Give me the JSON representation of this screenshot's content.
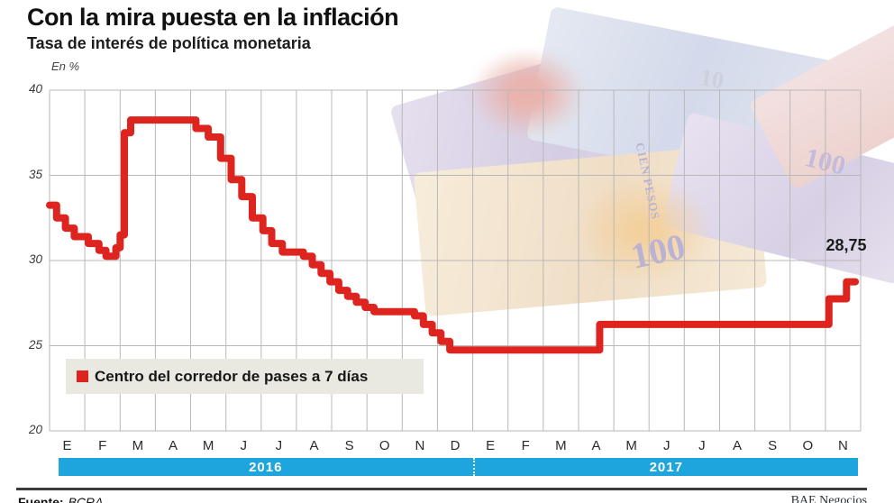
{
  "header": {
    "title": "Con la mira puesta en la inflación",
    "subtitle": "Tasa de interés de política monetaria"
  },
  "chart": {
    "unit_label": "En %",
    "end_label": "28,75",
    "legend_label": "Centro del corredor de pases a 7 días",
    "y_ticks": [
      40,
      35,
      30,
      25,
      20
    ],
    "months": [
      "E",
      "F",
      "M",
      "A",
      "M",
      "J",
      "J",
      "A",
      "S",
      "O",
      "N",
      "D",
      "E",
      "F",
      "M",
      "A",
      "M",
      "J",
      "J",
      "A",
      "S",
      "O",
      "N"
    ],
    "years": [
      {
        "label": "2016",
        "months": 12
      },
      {
        "label": "2017",
        "months": 11
      }
    ]
  },
  "chart_data": {
    "type": "line",
    "subtype": "step-after",
    "title": "Tasa de interés de política monetaria",
    "ylabel": "En %",
    "ylim": [
      20,
      40
    ],
    "x_description": "months elapsed since January 2016 (E 2016 = 0) through November 2017",
    "grid": true,
    "legend_position": "inside-bottom-left",
    "series": [
      {
        "name": "Centro del corredor de pases a 7 días",
        "color": "#de241f",
        "points": [
          [
            0.0,
            33.25
          ],
          [
            0.2,
            32.5
          ],
          [
            0.45,
            31.9
          ],
          [
            0.7,
            31.4
          ],
          [
            1.1,
            31.0
          ],
          [
            1.4,
            30.6
          ],
          [
            1.6,
            30.25
          ],
          [
            1.88,
            30.75
          ],
          [
            2.0,
            31.5
          ],
          [
            2.12,
            37.5
          ],
          [
            2.3,
            38.25
          ],
          [
            4.15,
            37.75
          ],
          [
            4.5,
            37.25
          ],
          [
            4.85,
            36.0
          ],
          [
            5.15,
            34.75
          ],
          [
            5.45,
            33.75
          ],
          [
            5.75,
            32.5
          ],
          [
            6.05,
            31.75
          ],
          [
            6.3,
            31.0
          ],
          [
            6.6,
            30.5
          ],
          [
            7.2,
            30.25
          ],
          [
            7.45,
            29.75
          ],
          [
            7.7,
            29.25
          ],
          [
            7.95,
            28.75
          ],
          [
            8.2,
            28.25
          ],
          [
            8.45,
            27.9
          ],
          [
            8.7,
            27.55
          ],
          [
            8.95,
            27.25
          ],
          [
            9.2,
            27.0
          ],
          [
            10.35,
            26.75
          ],
          [
            10.6,
            26.25
          ],
          [
            10.85,
            25.75
          ],
          [
            11.1,
            25.25
          ],
          [
            11.35,
            24.75
          ],
          [
            15.6,
            26.25
          ],
          [
            22.1,
            27.75
          ],
          [
            22.6,
            28.75
          ],
          [
            22.85,
            28.75
          ]
        ]
      }
    ],
    "annotations": [
      {
        "text": "28,75",
        "x": 22.85,
        "y": 28.75
      }
    ]
  },
  "footer": {
    "source_label": "Fuente:",
    "source_value": "BCRA",
    "credit": "BAE Negocios"
  },
  "colors": {
    "line": "#de241f",
    "year_bar": "#1fa5de",
    "legend_bg": "#eae9e1",
    "grid": "#b8b8b8"
  }
}
